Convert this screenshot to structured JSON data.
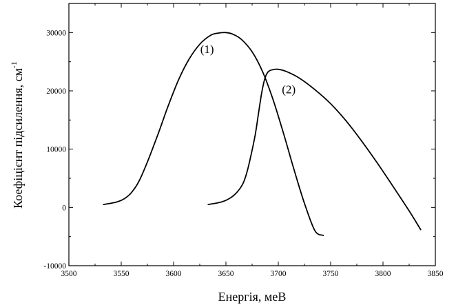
{
  "chart_data": {
    "type": "line",
    "title": "",
    "xlabel": "Енергія, меВ",
    "ylabel_main": "Коефіцієнт підсилення, см",
    "ylabel_sup": "-1",
    "xlim": [
      3500,
      3850
    ],
    "ylim": [
      -10000,
      35000
    ],
    "x_ticks": [
      3500,
      3550,
      3600,
      3650,
      3700,
      3750,
      3800,
      3850
    ],
    "y_ticks": [
      -10000,
      0,
      10000,
      20000,
      30000
    ],
    "x_tick_labels": [
      "3500",
      "3550",
      "3600",
      "3650",
      "3700",
      "3750",
      "3800",
      "3850"
    ],
    "y_tick_labels": [
      "-10000",
      "0",
      "10000",
      "20000",
      "30000"
    ],
    "grid": false,
    "legend": "none",
    "series": [
      {
        "name": "(1)",
        "x": [
          3533,
          3545,
          3553,
          3560,
          3567,
          3575,
          3585,
          3595,
          3605,
          3615,
          3625,
          3635,
          3642,
          3650,
          3657,
          3665,
          3675,
          3685,
          3695,
          3705,
          3715,
          3725,
          3735,
          3743
        ],
        "y": [
          500,
          900,
          1500,
          2600,
          4500,
          7800,
          12500,
          17500,
          22000,
          25500,
          28000,
          29500,
          29900,
          30000,
          29700,
          28800,
          26700,
          23300,
          18500,
          12700,
          6500,
          700,
          -4000,
          -4800
        ]
      },
      {
        "name": "(2)",
        "x": [
          3633,
          3645,
          3653,
          3660,
          3666,
          3670,
          3674,
          3678,
          3681,
          3684,
          3687,
          3690,
          3694,
          3700,
          3708,
          3720,
          3735,
          3750,
          3765,
          3780,
          3795,
          3810,
          3825,
          3836
        ],
        "y": [
          500,
          900,
          1500,
          2500,
          4000,
          6000,
          9000,
          12500,
          16000,
          19500,
          22000,
          23200,
          23600,
          23700,
          23300,
          22200,
          20200,
          17800,
          14800,
          11300,
          7500,
          3500,
          -600,
          -3800
        ]
      }
    ],
    "annotations": [
      {
        "text": "(1)",
        "x": 3632,
        "y": 26500
      },
      {
        "text": "(2)",
        "x": 3710,
        "y": 19600
      }
    ]
  }
}
